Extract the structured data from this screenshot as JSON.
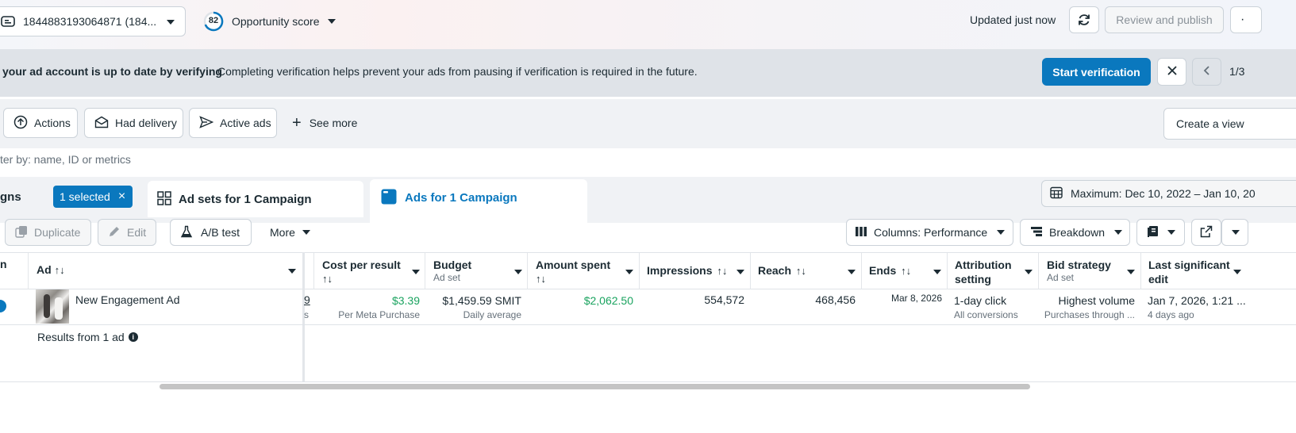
{
  "top": {
    "account_label": "1844883193064871 (184...",
    "score_value": "82",
    "score_label": "Opportunity score",
    "updated_text": "Updated just now",
    "review_publish": "Review and publish"
  },
  "banner": {
    "title": "your ad account is up to date by verifying",
    "message": "Completing verification helps prevent your ads from pausing if verification is required in the future.",
    "start_button": "Start verification",
    "pager": "1/3"
  },
  "filters": {
    "actions": "Actions",
    "had_delivery": "Had delivery",
    "active_ads": "Active ads",
    "see_more": "See more",
    "create_view": "Create a view"
  },
  "search": {
    "placeholder": "ter by: name, ID or metrics"
  },
  "tabs": {
    "campaigns_partial": "gns",
    "selected_chip": "1 selected",
    "ad_sets": "Ad sets for 1 Campaign",
    "ads": "Ads for 1 Campaign",
    "date_range": "Maximum: Dec 10, 2022 – Jan 10, 20"
  },
  "toolbar": {
    "duplicate": "Duplicate",
    "edit": "Edit",
    "ab_test": "A/B test",
    "more": "More",
    "columns": "Columns: Performance",
    "breakdown": "Breakdown"
  },
  "table": {
    "headers": {
      "ad": "Ad",
      "cost_per_result": "Cost per result",
      "budget": "Budget",
      "budget_sub": "Ad set",
      "amount_spent": "Amount spent",
      "impressions": "Impressions",
      "reach": "Reach",
      "ends": "Ends",
      "attribution_1": "Attribution",
      "attribution_2": "setting",
      "bid_strategy": "Bid strategy",
      "bid_sub": "Ad set",
      "last_edit_1": "Last significant",
      "last_edit_2": "edit"
    },
    "row": {
      "ad_name": "New Engagement Ad",
      "results_partial": "9",
      "results_sub_partial": "s",
      "cost_per_result": "$3.39",
      "cost_sub": "Per Meta Purchase",
      "budget": "$1,459.59 SMIT",
      "budget_sub": "Daily average",
      "amount_spent": "$2,062.50",
      "impressions": "554,572",
      "reach": "468,456",
      "ends": "Mar 8, 2026",
      "attribution": "1-day click",
      "attribution_sub": "All conversions",
      "bid_strategy": "Highest volume",
      "bid_sub": "Purchases through ...",
      "last_edit": "Jan 7, 2026, 1:21 ...",
      "last_edit_sub": "4 days ago"
    },
    "results_footer": "Results from 1 ad"
  },
  "colors": {
    "accent": "#0a78be",
    "green": "#1aa35f",
    "banner_bg": "#dfe3e8"
  }
}
